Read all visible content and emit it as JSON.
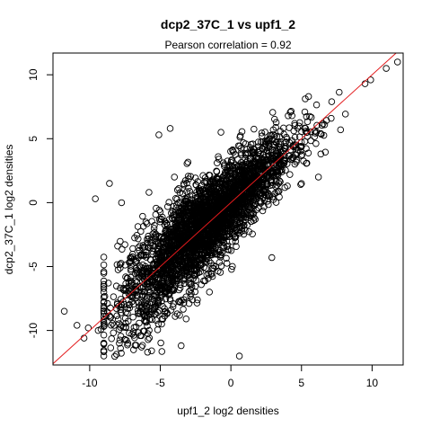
{
  "chart_data": {
    "type": "scatter",
    "title": "dcp2_37C_1 vs upf1_2",
    "subtitle": "Pearson correlation =  0.92",
    "xlabel": "upf1_2 log2 densities",
    "ylabel": "dcp2_37C_1 log2 densities",
    "xlim": [
      -12.6,
      12.2
    ],
    "ylim": [
      -12.7,
      11.7
    ],
    "xticks": [
      -10,
      -5,
      0,
      5,
      10
    ],
    "yticks": [
      -10,
      -5,
      0,
      5,
      10
    ],
    "grid": false,
    "legend": "none",
    "marker": "open-circle",
    "point_color": "#000000",
    "reference_line": {
      "label": "y = x",
      "slope": 1,
      "intercept": 0,
      "color": "#e31a1c"
    },
    "pearson_correlation": 0.92,
    "bulk_trend": {
      "description": "dense cloud along y = x, spread wider at low values",
      "x_range": [
        -9,
        9
      ],
      "slope": 1,
      "intercept": 0,
      "y_spread_sd": 1.25
    },
    "outliers": [
      {
        "x": 11.8,
        "y": 11.0
      },
      {
        "x": 11.0,
        "y": 10.5
      },
      {
        "x": 9.9,
        "y": 9.6
      },
      {
        "x": 9.5,
        "y": 9.3
      },
      {
        "x": 5.5,
        "y": 8.3
      },
      {
        "x": -5.1,
        "y": 5.3
      },
      {
        "x": -4.3,
        "y": 5.8
      },
      {
        "x": -9.6,
        "y": 0.3
      },
      {
        "x": -8.6,
        "y": 1.5
      },
      {
        "x": -5.8,
        "y": 0.8
      },
      {
        "x": -11.8,
        "y": -8.5
      },
      {
        "x": -10.9,
        "y": -9.6
      },
      {
        "x": -10.4,
        "y": -10.6
      },
      {
        "x": -7.3,
        "y": -11.0
      },
      {
        "x": -7.9,
        "y": -11.0
      },
      {
        "x": 0.6,
        "y": -12.0
      },
      {
        "x": -9.4,
        "y": -10.0
      },
      {
        "x": -5.3,
        "y": -9.2
      },
      {
        "x": -6.9,
        "y": -10.1
      },
      {
        "x": -10.1,
        "y": -9.8
      },
      {
        "x": -9.2,
        "y": -9.9
      },
      {
        "x": -3.8,
        "y": -8.7
      },
      {
        "x": 2.9,
        "y": -4.3
      },
      {
        "x": -4.0,
        "y": 2.0
      },
      {
        "x": 6.2,
        "y": 2.0
      },
      {
        "x": 4.0,
        "y": 1.3
      }
    ]
  }
}
